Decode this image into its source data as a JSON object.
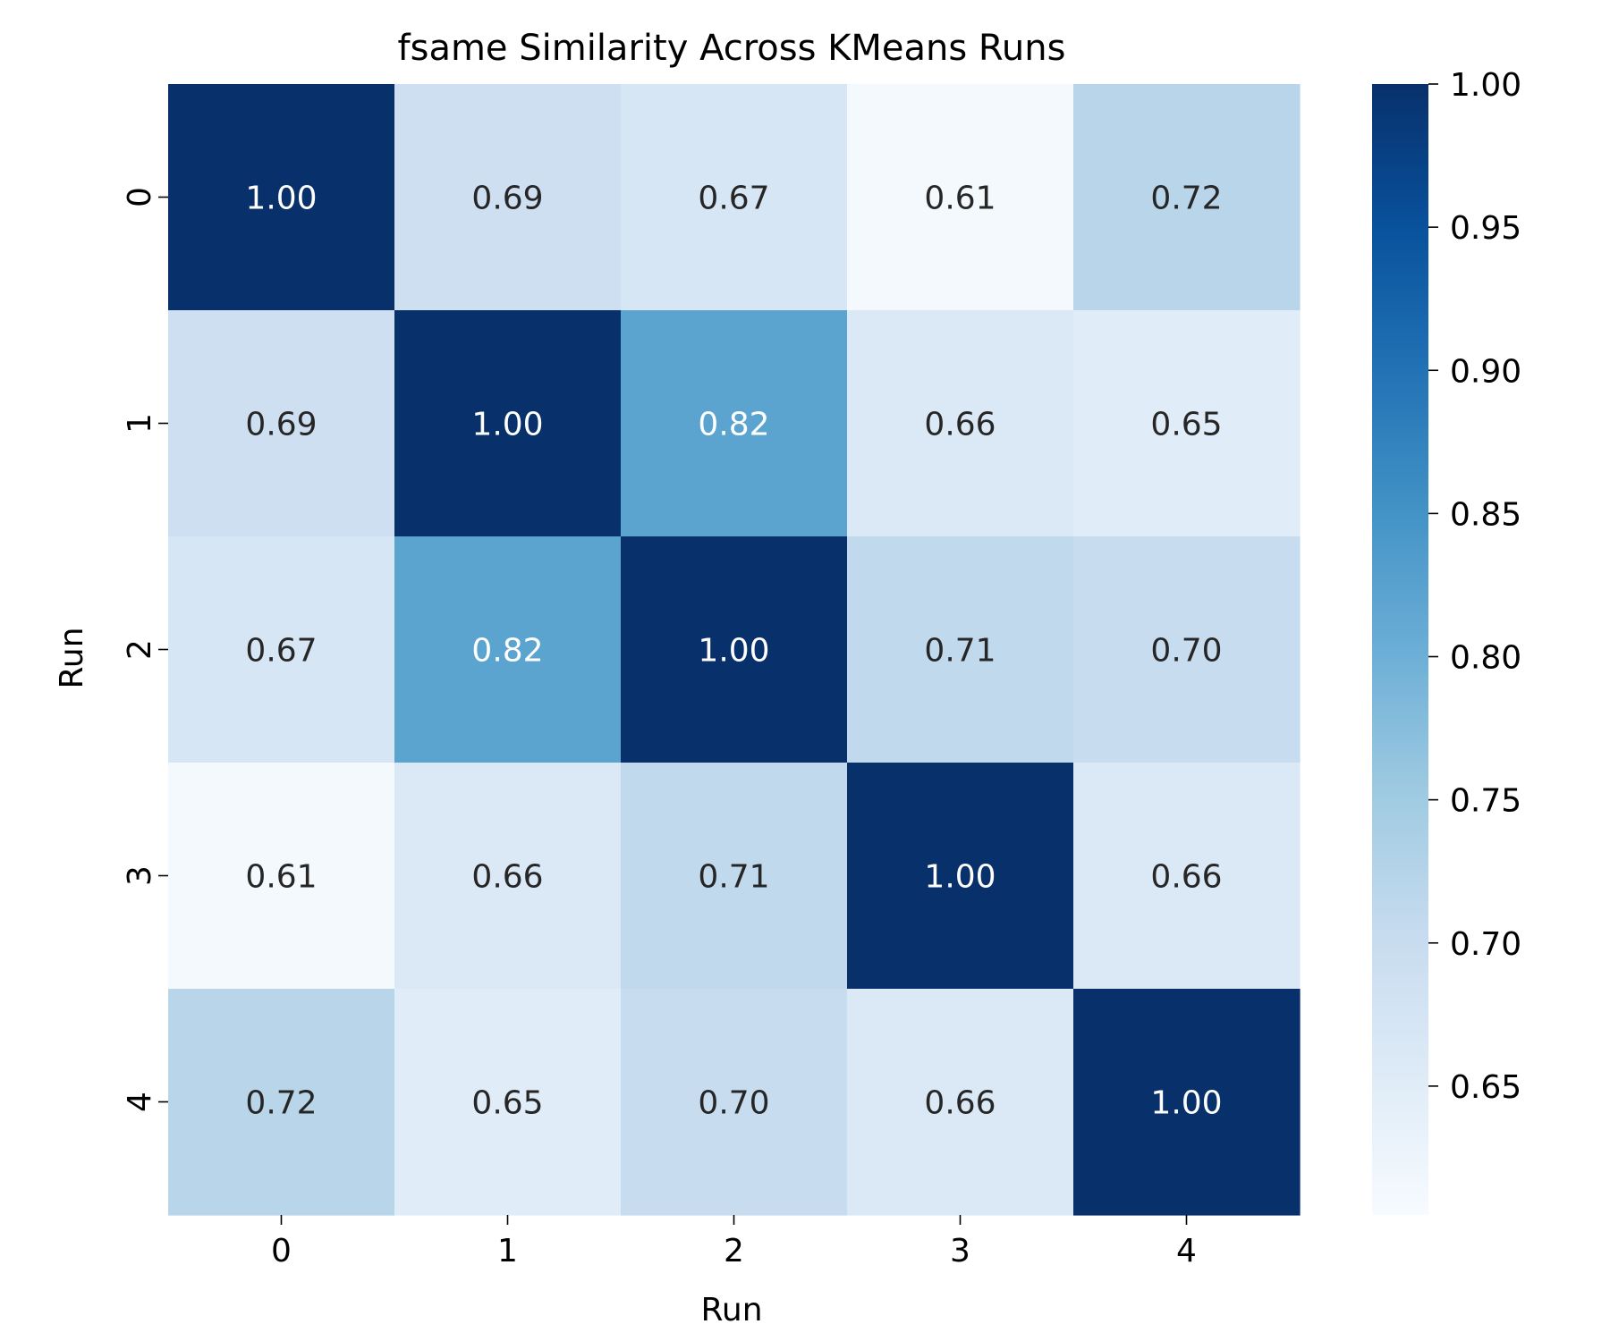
{
  "chart_data": {
    "type": "heatmap",
    "title": "fsame Similarity Across KMeans Runs",
    "xlabel": "Run",
    "ylabel": "Run",
    "x_categories": [
      "0",
      "1",
      "2",
      "3",
      "4"
    ],
    "y_categories": [
      "0",
      "1",
      "2",
      "3",
      "4"
    ],
    "values": [
      [
        1.0,
        0.69,
        0.67,
        0.61,
        0.72
      ],
      [
        0.69,
        1.0,
        0.82,
        0.66,
        0.65
      ],
      [
        0.67,
        0.82,
        1.0,
        0.71,
        0.7
      ],
      [
        0.61,
        0.66,
        0.71,
        1.0,
        0.66
      ],
      [
        0.72,
        0.65,
        0.7,
        0.66,
        1.0
      ]
    ],
    "value_format": "0.00",
    "colormap": "Blues",
    "vmin": 0.605,
    "vmax": 1.0,
    "colorbar": {
      "ticks": [
        0.65,
        0.7,
        0.75,
        0.8,
        0.85,
        0.9,
        0.95,
        1.0
      ],
      "tick_labels": [
        "0.65",
        "0.70",
        "0.75",
        "0.80",
        "0.85",
        "0.90",
        "0.95",
        "1.00"
      ]
    },
    "grid": false,
    "legend": "colorbar-right"
  }
}
